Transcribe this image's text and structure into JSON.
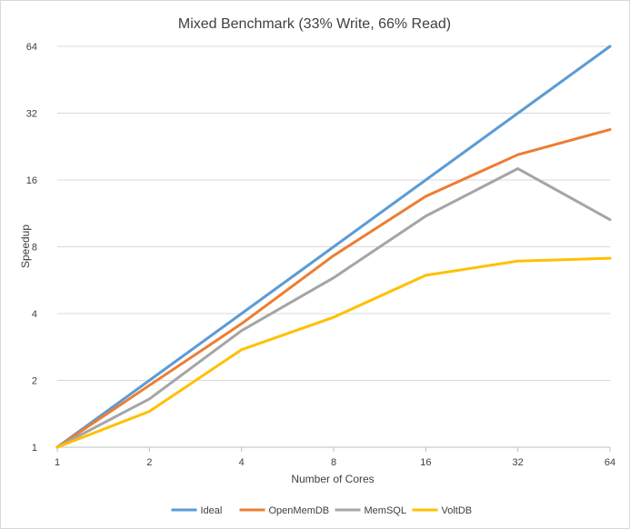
{
  "chart_data": {
    "type": "line",
    "title": "Mixed Benchmark (33% Write, 66% Read)",
    "xlabel": "Number  of Cores",
    "ylabel": "Speedup",
    "x_scale": "log2",
    "y_scale": "log2",
    "categories": [
      "1",
      "2",
      "4",
      "8",
      "16",
      "32",
      "64"
    ],
    "x": [
      1,
      2,
      4,
      8,
      16,
      32,
      64
    ],
    "y_ticks": [
      1,
      2,
      4,
      8,
      16,
      32,
      64
    ],
    "y_tick_labels": [
      "1",
      "2",
      "4",
      "8",
      "16",
      "32",
      "64"
    ],
    "ylim": [
      1,
      64
    ],
    "grid": "horizontal",
    "legend_position": "bottom",
    "series": [
      {
        "name": "Ideal",
        "color": "#5b9bd5",
        "values": [
          1,
          2,
          4,
          8,
          16,
          32,
          64
        ]
      },
      {
        "name": "OpenMemDB",
        "color": "#ed7d31",
        "values": [
          1,
          1.9,
          3.6,
          7.3,
          13.5,
          20.8,
          27
        ]
      },
      {
        "name": "MemSQL",
        "color": "#a5a5a5",
        "values": [
          1,
          1.65,
          3.35,
          5.8,
          11,
          18,
          10.6
        ]
      },
      {
        "name": "VoltDB",
        "color": "#ffc000",
        "values": [
          1,
          1.45,
          2.75,
          3.85,
          5.95,
          6.9,
          7.1
        ]
      }
    ]
  }
}
